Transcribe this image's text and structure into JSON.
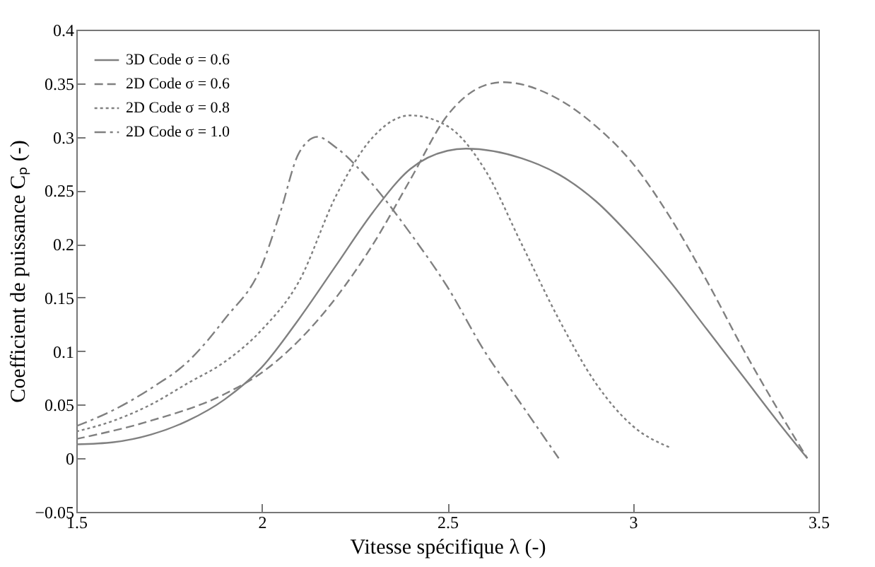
{
  "chart_data": {
    "type": "line",
    "xlabel": "Vitesse spécifique λ (-)",
    "ylabel": "Coefficient de puissance Cₚ (-)",
    "xlim": [
      1.5,
      3.5
    ],
    "xticks": [
      1.5,
      2,
      2.5,
      3,
      3.5
    ],
    "ylim": [
      -0.05,
      0.4
    ],
    "yticks": [
      -0.05,
      0,
      0.05,
      0.1,
      0.15,
      0.2,
      0.25,
      0.3,
      0.35,
      0.4
    ],
    "grid": false,
    "legend": "top left",
    "marker": "none",
    "series": [
      {
        "name": "3D Code σ = 0.6",
        "color": "#808080",
        "line_style": "solid",
        "x": [
          1.5,
          1.6,
          1.7,
          1.8,
          1.9,
          2.0,
          2.1,
          2.2,
          2.3,
          2.4,
          2.5,
          2.55,
          2.7,
          2.8,
          2.9,
          3.0,
          3.1,
          3.2,
          3.3,
          3.4,
          3.47
        ],
        "values": [
          0.013,
          0.015,
          0.022,
          0.035,
          0.055,
          0.085,
          0.13,
          0.18,
          0.23,
          0.27,
          0.287,
          0.289,
          0.28,
          0.265,
          0.24,
          0.205,
          0.165,
          0.12,
          0.075,
          0.03,
          0
        ]
      },
      {
        "name": "2D Code σ = 0.6",
        "color": "#808080",
        "line_style": "dashed",
        "x": [
          1.5,
          1.7,
          1.9,
          2.0,
          2.1,
          2.2,
          2.3,
          2.4,
          2.5,
          2.6,
          2.65,
          2.8,
          2.9,
          3.0,
          3.1,
          3.2,
          3.3,
          3.4,
          3.47
        ],
        "values": [
          0.018,
          0.035,
          0.06,
          0.08,
          0.11,
          0.15,
          0.2,
          0.26,
          0.32,
          0.348,
          0.351,
          0.335,
          0.31,
          0.275,
          0.225,
          0.165,
          0.1,
          0.04,
          0
        ]
      },
      {
        "name": "2D Code σ = 0.8",
        "color": "#808080",
        "line_style": "dotted",
        "x": [
          1.5,
          1.6,
          1.7,
          1.8,
          1.9,
          2.0,
          2.1,
          2.2,
          2.3,
          2.4,
          2.5,
          2.6,
          2.7,
          2.8,
          2.9,
          3.0,
          3.1
        ],
        "values": [
          0.025,
          0.035,
          0.05,
          0.07,
          0.09,
          0.12,
          0.165,
          0.245,
          0.3,
          0.32,
          0.31,
          0.27,
          0.2,
          0.13,
          0.07,
          0.03,
          0.01
        ]
      },
      {
        "name": "2D Code σ = 1.0",
        "color": "#808080",
        "line_style": "dashdot",
        "x": [
          1.5,
          1.6,
          1.7,
          1.8,
          1.9,
          2.0,
          2.05,
          2.1,
          2.15,
          2.2,
          2.3,
          2.4,
          2.5,
          2.6,
          2.7,
          2.8
        ],
        "values": [
          0.03,
          0.045,
          0.065,
          0.09,
          0.13,
          0.18,
          0.23,
          0.285,
          0.3,
          0.29,
          0.255,
          0.21,
          0.16,
          0.1,
          0.05,
          0
        ]
      }
    ]
  }
}
